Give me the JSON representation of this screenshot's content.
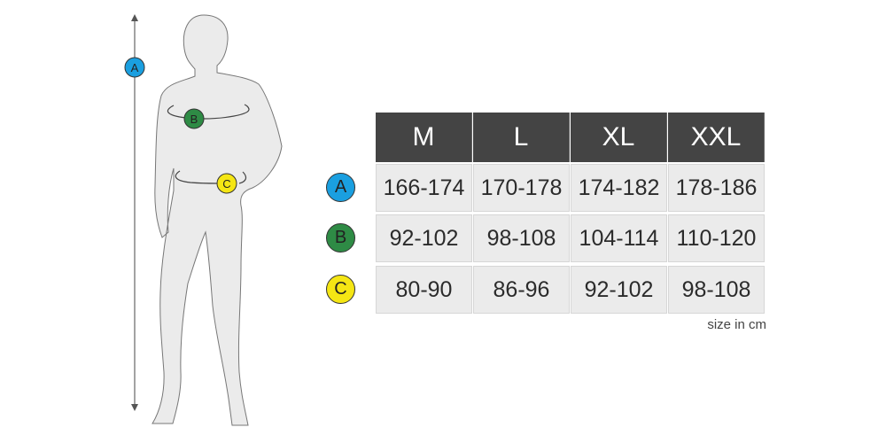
{
  "columns": [
    "M",
    "L",
    "XL",
    "XXL"
  ],
  "rows": [
    {
      "label": "A",
      "color": "#1a9fe0",
      "values": [
        "166-174",
        "170-178",
        "174-182",
        "178-186"
      ]
    },
    {
      "label": "B",
      "color": "#2e8b45",
      "values": [
        "92-102",
        "98-108",
        "104-114",
        "110-120"
      ]
    },
    {
      "label": "C",
      "color": "#f5e614",
      "values": [
        "80-90",
        "86-96",
        "92-102",
        "98-108"
      ]
    }
  ],
  "unit_note": "size in cm",
  "figure": {
    "markers": [
      "A",
      "B",
      "C"
    ]
  }
}
